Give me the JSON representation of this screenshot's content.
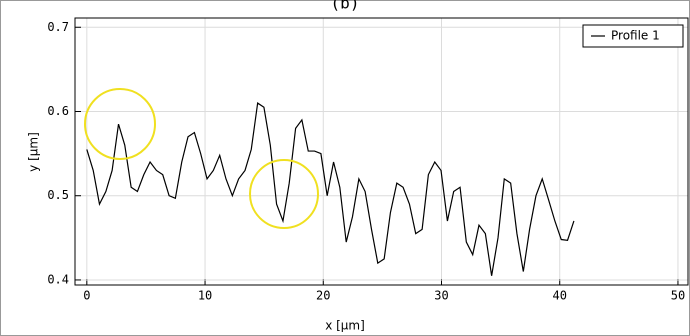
{
  "chart_data": {
    "type": "line",
    "title": "(b)",
    "x_label": "x [µm]",
    "y_label": "y [µm]",
    "xlim": [
      -1,
      50.85
    ],
    "ylim": [
      0.394,
      0.711
    ],
    "xticks": [
      0,
      10,
      20,
      30,
      40,
      50
    ],
    "yticks": [
      0.4,
      0.5,
      0.6,
      0.7
    ],
    "grid": true,
    "legend": "upper right",
    "x": [
      0,
      0.54,
      1.07,
      1.61,
      2.14,
      2.68,
      3.21,
      3.75,
      4.28,
      4.82,
      5.35,
      5.89,
      6.42,
      6.96,
      7.49,
      8.03,
      8.56,
      9.1,
      9.63,
      10.17,
      10.7,
      11.24,
      11.77,
      12.31,
      12.84,
      13.38,
      13.91,
      14.45,
      14.98,
      15.52,
      16.05,
      16.59,
      17.12,
      17.66,
      18.19,
      18.73,
      19.26,
      19.8,
      20.33,
      20.87,
      21.4,
      21.94,
      22.47,
      23.01,
      23.54,
      24.08,
      24.61,
      25.15,
      25.68,
      26.22,
      26.75,
      27.29,
      27.82,
      28.36,
      28.89,
      29.43,
      29.96,
      30.5,
      31.03,
      31.57,
      32.1,
      32.64,
      33.17,
      33.71,
      34.24,
      34.78,
      35.31,
      35.85,
      36.38,
      36.92,
      37.45,
      37.99,
      38.52,
      39.06,
      39.59,
      40.13,
      40.66,
      41.2
    ],
    "series": [
      {
        "name": "Profile 1",
        "color": "#000000",
        "values": [
          0.555,
          0.53,
          0.49,
          0.505,
          0.53,
          0.585,
          0.56,
          0.51,
          0.505,
          0.525,
          0.54,
          0.53,
          0.525,
          0.5,
          0.497,
          0.54,
          0.57,
          0.575,
          0.55,
          0.52,
          0.53,
          0.548,
          0.52,
          0.5,
          0.52,
          0.53,
          0.555,
          0.61,
          0.605,
          0.56,
          0.49,
          0.47,
          0.515,
          0.58,
          0.59,
          0.553,
          0.553,
          0.55,
          0.5,
          0.54,
          0.51,
          0.445,
          0.475,
          0.52,
          0.505,
          0.46,
          0.42,
          0.425,
          0.48,
          0.515,
          0.51,
          0.49,
          0.455,
          0.46,
          0.525,
          0.54,
          0.53,
          0.47,
          0.505,
          0.51,
          0.445,
          0.43,
          0.465,
          0.455,
          0.405,
          0.45,
          0.52,
          0.515,
          0.455,
          0.41,
          0.46,
          0.5,
          0.52,
          0.495,
          0.47,
          0.448,
          0.447,
          0.47
        ]
      }
    ]
  }
}
